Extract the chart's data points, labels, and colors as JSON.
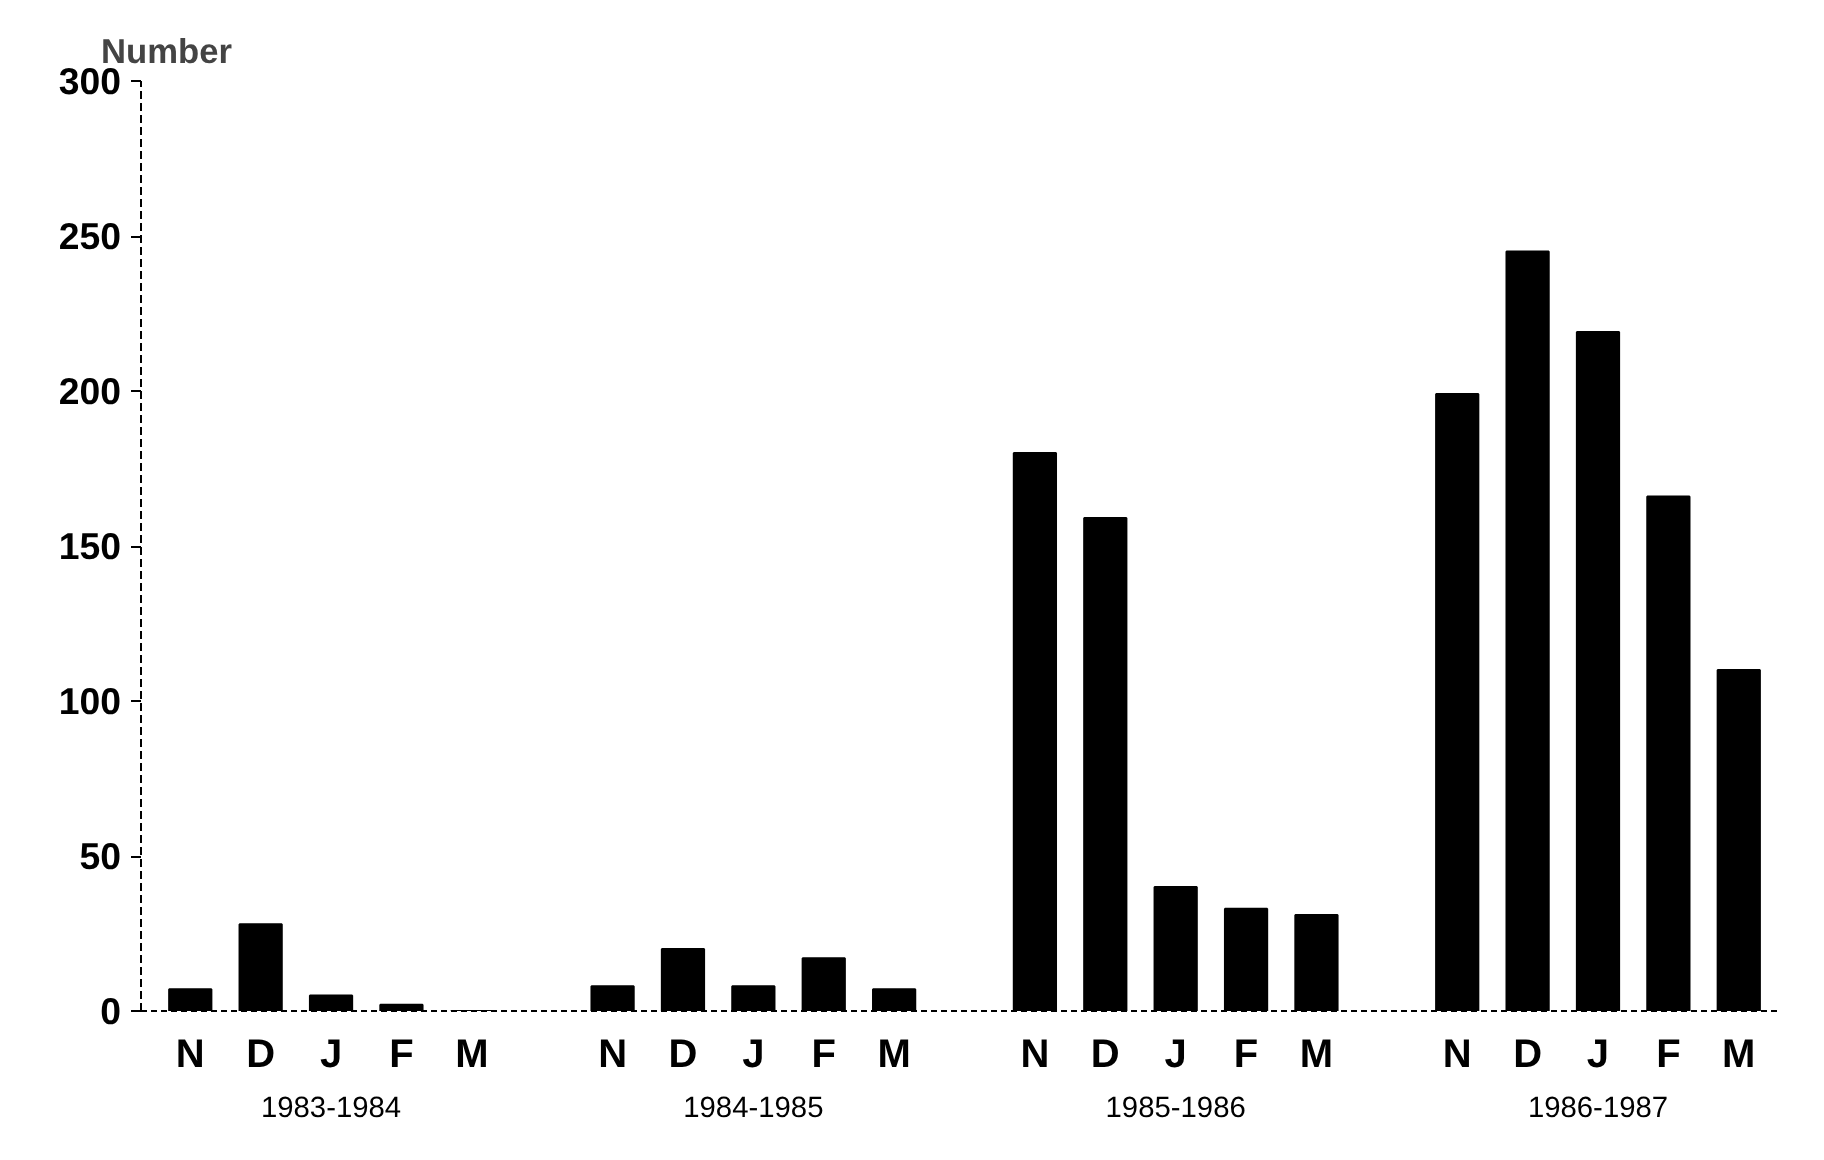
{
  "chart_data": {
    "type": "bar",
    "ylabel": "Number",
    "categories": [
      "N",
      "D",
      "J",
      "F",
      "M",
      "N",
      "D",
      "J",
      "F",
      "M",
      "N",
      "D",
      "J",
      "F",
      "M",
      "N",
      "D",
      "J",
      "F",
      "M"
    ],
    "values": [
      7,
      28,
      5,
      2,
      0,
      8,
      20,
      8,
      17,
      7,
      180,
      159,
      40,
      33,
      31,
      199,
      245,
      219,
      166,
      110
    ],
    "color": "#000000",
    "ylim": [
      0,
      300
    ],
    "yticks": [
      0,
      50,
      100,
      150,
      200,
      250,
      300
    ],
    "grid": false,
    "annotations": [
      "1983-1984",
      "1984-1985",
      "1985-1986",
      "1986-1987"
    ]
  }
}
